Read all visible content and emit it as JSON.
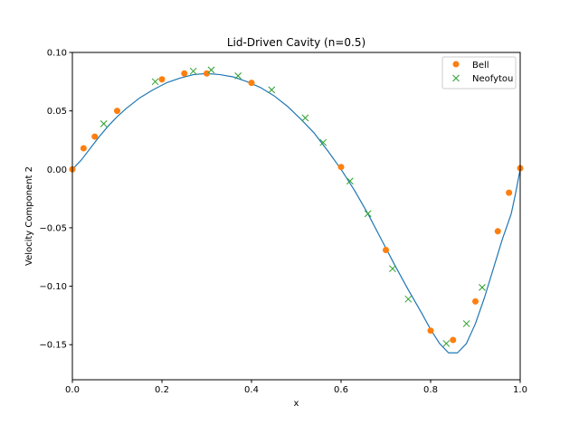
{
  "chart_data": {
    "type": "scatter",
    "title": "Lid-Driven Cavity (n=0.5)",
    "xlabel": "x",
    "ylabel": "Velocity Component 2",
    "xlim": [
      0,
      1
    ],
    "ylim": [
      -0.18,
      0.1
    ],
    "xticks": [
      "0.0",
      "0.2",
      "0.4",
      "0.6",
      "0.8",
      "1.0"
    ],
    "xtick_values": [
      0,
      0.2,
      0.4,
      0.6,
      0.8,
      1.0
    ],
    "yticks": [
      "0.10",
      "0.05",
      "0.00",
      "−0.05",
      "−0.10",
      "−0.15"
    ],
    "ytick_values": [
      0.1,
      0.05,
      0,
      -0.05,
      -0.1,
      -0.15
    ],
    "grid": false,
    "legend_position": "top-right",
    "series": [
      {
        "type": "line",
        "color": "#1f77b4",
        "x": [
          0,
          0.02,
          0.04,
          0.06,
          0.08,
          0.1,
          0.12,
          0.15,
          0.18,
          0.21,
          0.24,
          0.27,
          0.3,
          0.33,
          0.36,
          0.39,
          0.42,
          0.45,
          0.48,
          0.51,
          0.54,
          0.57,
          0.6,
          0.63,
          0.66,
          0.69,
          0.72,
          0.75,
          0.78,
          0.8,
          0.82,
          0.84,
          0.86,
          0.88,
          0.9,
          0.92,
          0.94,
          0.96,
          0.98,
          0.99,
          1.0
        ],
        "y": [
          0,
          0.008,
          0.018,
          0.028,
          0.037,
          0.045,
          0.052,
          0.061,
          0.068,
          0.074,
          0.078,
          0.081,
          0.082,
          0.081,
          0.079,
          0.075,
          0.07,
          0.063,
          0.054,
          0.043,
          0.031,
          0.016,
          0,
          -0.018,
          -0.038,
          -0.06,
          -0.082,
          -0.103,
          -0.123,
          -0.137,
          -0.149,
          -0.157,
          -0.157,
          -0.149,
          -0.132,
          -0.11,
          -0.085,
          -0.06,
          -0.038,
          -0.02,
          0
        ]
      },
      {
        "name": "Bell",
        "type": "scatter",
        "marker": "circle",
        "color": "#ff7f0e",
        "x": [
          0,
          0.025,
          0.05,
          0.1,
          0.2,
          0.25,
          0.3,
          0.4,
          0.6,
          0.7,
          0.8,
          0.85,
          0.9,
          0.95,
          0.975,
          1.0
        ],
        "y": [
          0.0,
          0.018,
          0.028,
          0.05,
          0.077,
          0.082,
          0.082,
          0.074,
          0.002,
          -0.069,
          -0.138,
          -0.146,
          -0.113,
          -0.053,
          -0.02,
          0.001
        ]
      },
      {
        "name": "Neofytou",
        "type": "scatter",
        "marker": "x",
        "color": "#2ca02c",
        "x": [
          0.07,
          0.185,
          0.27,
          0.31,
          0.37,
          0.445,
          0.52,
          0.56,
          0.62,
          0.66,
          0.715,
          0.75,
          0.835,
          0.88,
          0.915
        ],
        "y": [
          0.039,
          0.075,
          0.084,
          0.085,
          0.08,
          0.068,
          0.044,
          0.023,
          -0.01,
          -0.038,
          -0.085,
          -0.111,
          -0.149,
          -0.132,
          -0.101
        ]
      }
    ]
  }
}
